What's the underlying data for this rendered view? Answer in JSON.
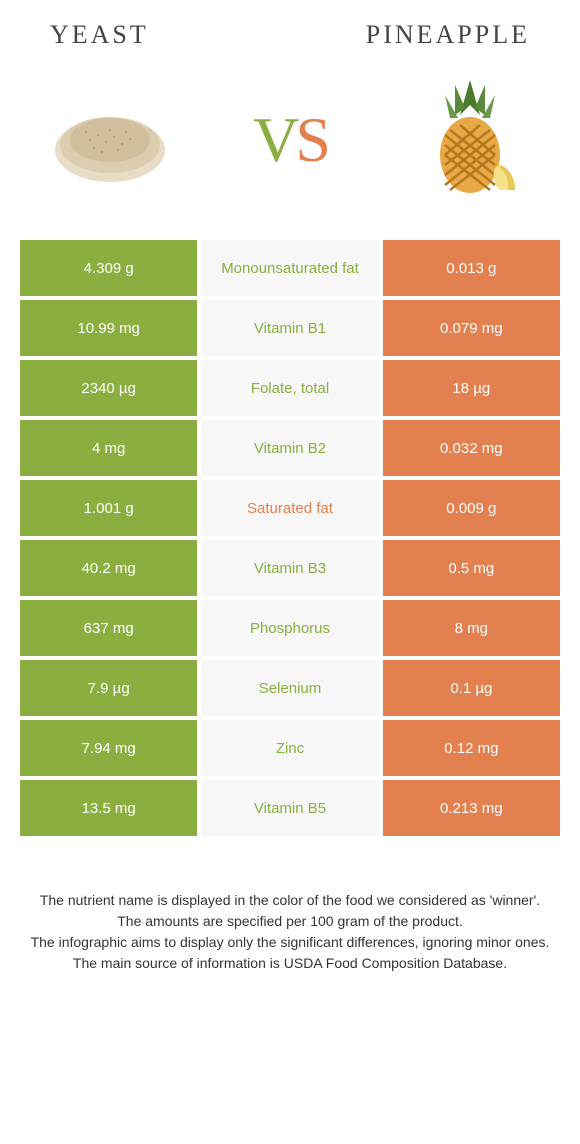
{
  "colors": {
    "left": "#8aae3f",
    "right": "#e2814f",
    "mid_bg": "#f7f7f7",
    "text_white": "#ffffff",
    "footer_text": "#333333"
  },
  "header": {
    "left": "Yeast",
    "right": "Pineapple"
  },
  "vs": {
    "v": "V",
    "s": "S"
  },
  "rows": [
    {
      "left": "4.309 g",
      "mid": "Monounsaturated fat",
      "right": "0.013 g",
      "winner": "left"
    },
    {
      "left": "10.99 mg",
      "mid": "Vitamin B1",
      "right": "0.079 mg",
      "winner": "left"
    },
    {
      "left": "2340 µg",
      "mid": "Folate, total",
      "right": "18 µg",
      "winner": "left"
    },
    {
      "left": "4 mg",
      "mid": "Vitamin B2",
      "right": "0.032 mg",
      "winner": "left"
    },
    {
      "left": "1.001 g",
      "mid": "Saturated fat",
      "right": "0.009 g",
      "winner": "right"
    },
    {
      "left": "40.2 mg",
      "mid": "Vitamin B3",
      "right": "0.5 mg",
      "winner": "left"
    },
    {
      "left": "637 mg",
      "mid": "Phosphorus",
      "right": "8 mg",
      "winner": "left"
    },
    {
      "left": "7.9 µg",
      "mid": "Selenium",
      "right": "0.1 µg",
      "winner": "left"
    },
    {
      "left": "7.94 mg",
      "mid": "Zinc",
      "right": "0.12 mg",
      "winner": "left"
    },
    {
      "left": "13.5 mg",
      "mid": "Vitamin B5",
      "right": "0.213 mg",
      "winner": "left"
    }
  ],
  "footer": {
    "line1": "The nutrient name is displayed in the color of the food we considered as 'winner'.",
    "line2": "The amounts are specified per 100 gram of the product.",
    "line3": "The infographic aims to display only the significant differences, ignoring minor ones.",
    "line4": "The main source of information is USDA Food Composition Database."
  }
}
